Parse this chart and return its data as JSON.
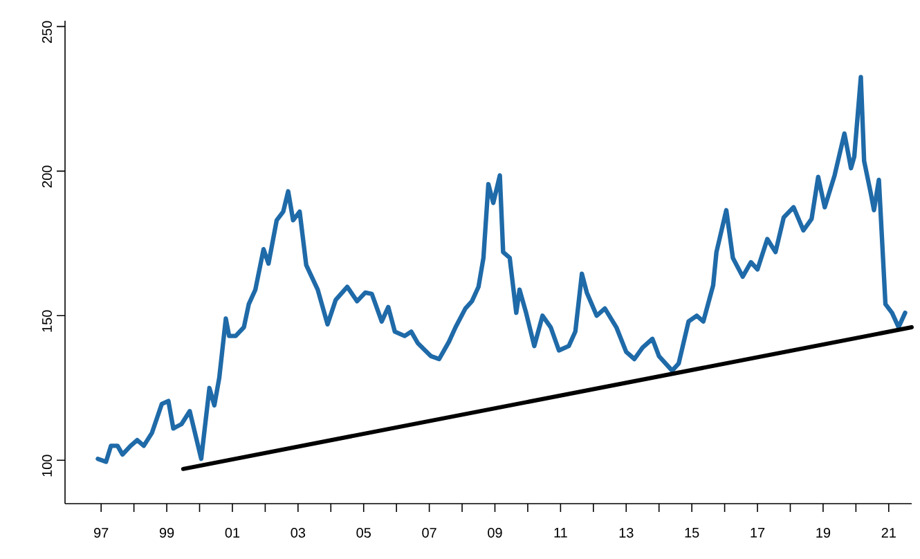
{
  "chart_data": {
    "type": "line",
    "xlim": [
      1995.9,
      2021.7
    ],
    "ylim": [
      85,
      252
    ],
    "xticks": [
      {
        "value": 1997,
        "label": "97"
      },
      {
        "value": 1998,
        "label": null
      },
      {
        "value": 1999,
        "label": "99"
      },
      {
        "value": 2000,
        "label": null
      },
      {
        "value": 2001,
        "label": "01"
      },
      {
        "value": 2002,
        "label": null
      },
      {
        "value": 2003,
        "label": "03"
      },
      {
        "value": 2004,
        "label": null
      },
      {
        "value": 2005,
        "label": "05"
      },
      {
        "value": 2006,
        "label": null
      },
      {
        "value": 2007,
        "label": "07"
      },
      {
        "value": 2008,
        "label": null
      },
      {
        "value": 2009,
        "label": "09"
      },
      {
        "value": 2010,
        "label": null
      },
      {
        "value": 2011,
        "label": "11"
      },
      {
        "value": 2012,
        "label": null
      },
      {
        "value": 2013,
        "label": "13"
      },
      {
        "value": 2014,
        "label": null
      },
      {
        "value": 2015,
        "label": "15"
      },
      {
        "value": 2016,
        "label": null
      },
      {
        "value": 2017,
        "label": "17"
      },
      {
        "value": 2018,
        "label": null
      },
      {
        "value": 2019,
        "label": "19"
      },
      {
        "value": 2020,
        "label": null
      },
      {
        "value": 2021,
        "label": "21"
      }
    ],
    "yticks": [
      100,
      150,
      200,
      250
    ],
    "marker": "none",
    "line_style": "solid",
    "series": [
      {
        "color": "#1f6aa8",
        "x": [
          1996.9,
          1997.15,
          1997.3,
          1997.5,
          1997.65,
          1997.9,
          1998.1,
          1998.3,
          1998.55,
          1998.85,
          1999.05,
          1999.2,
          1999.45,
          1999.7,
          2000.05,
          2000.3,
          2000.45,
          2000.6,
          2000.8,
          2000.9,
          2001.1,
          2001.35,
          2001.5,
          2001.7,
          2001.95,
          2002.1,
          2002.35,
          2002.55,
          2002.7,
          2002.85,
          2003.05,
          2003.25,
          2003.6,
          2003.9,
          2004.15,
          2004.5,
          2004.8,
          2005.05,
          2005.25,
          2005.55,
          2005.75,
          2005.95,
          2006.25,
          2006.45,
          2006.65,
          2007.05,
          2007.3,
          2007.6,
          2007.8,
          2008.1,
          2008.3,
          2008.5,
          2008.65,
          2008.8,
          2008.95,
          2009.15,
          2009.25,
          2009.45,
          2009.65,
          2009.75,
          2009.95,
          2010.2,
          2010.45,
          2010.7,
          2010.95,
          2011.25,
          2011.45,
          2011.65,
          2011.8,
          2012.1,
          2012.35,
          2012.7,
          2013.0,
          2013.25,
          2013.5,
          2013.8,
          2014.0,
          2014.4,
          2014.6,
          2014.9,
          2015.15,
          2015.35,
          2015.65,
          2015.75,
          2016.05,
          2016.25,
          2016.55,
          2016.8,
          2017.0,
          2017.3,
          2017.55,
          2017.8,
          2018.1,
          2018.4,
          2018.65,
          2018.85,
          2019.05,
          2019.35,
          2019.65,
          2019.85,
          2019.95,
          2020.15,
          2020.25,
          2020.45,
          2020.55,
          2020.7,
          2020.9,
          2021.1,
          2021.3,
          2021.5
        ],
        "values": [
          100.5,
          99.5,
          105,
          105,
          102,
          105,
          107,
          105,
          109.5,
          119.5,
          120.5,
          111,
          112.5,
          117,
          100.5,
          125,
          119,
          128.5,
          149,
          143,
          143,
          146,
          154,
          159,
          173,
          168,
          183,
          186,
          193,
          183,
          186,
          167.5,
          159,
          147,
          155.5,
          160,
          155,
          158,
          157.5,
          148,
          153,
          144.5,
          143,
          144.5,
          140.5,
          136,
          135,
          141,
          146,
          152.5,
          155,
          160,
          170,
          195.5,
          189,
          198.5,
          172,
          170,
          151,
          159,
          151,
          139.5,
          150,
          146,
          138,
          139.5,
          144.5,
          164.5,
          158,
          150,
          152.5,
          146,
          137.5,
          135,
          139,
          142,
          136,
          131,
          133.5,
          148,
          150,
          148,
          160.5,
          172,
          186.5,
          170,
          163.5,
          168.5,
          166,
          176.5,
          172,
          184,
          187.5,
          179.5,
          183.5,
          198,
          187.5,
          198.5,
          213,
          201,
          205,
          232.5,
          203.5,
          192.5,
          186.5,
          197,
          154,
          151,
          146,
          151
        ]
      },
      {
        "type": "line",
        "color": "#000000",
        "x": [
          1999.5,
          2021.7
        ],
        "values": [
          97,
          146
        ]
      }
    ]
  }
}
